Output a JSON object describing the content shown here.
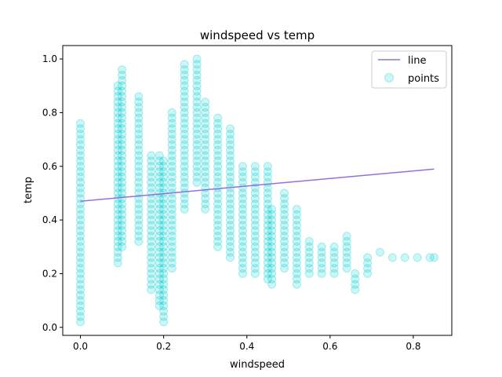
{
  "chart_data": {
    "type": "scatter",
    "title": "windspeed vs temp",
    "xlabel": "windspeed",
    "ylabel": "temp",
    "xlim": [
      -0.0425,
      0.8925
    ],
    "ylim": [
      -0.03,
      1.05
    ],
    "xticks": [
      "0.0",
      "0.2",
      "0.4",
      "0.6",
      "0.8"
    ],
    "xtick_values": [
      0.0,
      0.2,
      0.4,
      0.6,
      0.8
    ],
    "yticks": [
      "0.0",
      "0.2",
      "0.4",
      "0.6",
      "0.8",
      "1.0"
    ],
    "ytick_values": [
      0.0,
      0.2,
      0.4,
      0.6,
      0.8,
      1.0
    ],
    "grid": false,
    "legend_position": "top-right",
    "colors": {
      "points": "#00CED1",
      "line": "#9370DB"
    },
    "series": [
      {
        "name": "line",
        "kind": "line",
        "x": [
          0.0,
          0.85
        ],
        "y": [
          0.47,
          0.59
        ]
      },
      {
        "name": "points",
        "kind": "scatter",
        "columns": [
          {
            "x": 0.0,
            "ymin": 0.02,
            "ymax": 0.76
          },
          {
            "x": 0.09,
            "ymin": 0.24,
            "ymax": 0.9
          },
          {
            "x": 0.1,
            "ymin": 0.3,
            "ymax": 0.96
          },
          {
            "x": 0.14,
            "ymin": 0.32,
            "ymax": 0.86
          },
          {
            "x": 0.17,
            "ymin": 0.14,
            "ymax": 0.64
          },
          {
            "x": 0.19,
            "ymin": 0.08,
            "ymax": 0.64
          },
          {
            "x": 0.2,
            "ymin": 0.02,
            "ymax": 0.62
          },
          {
            "x": 0.22,
            "ymin": 0.22,
            "ymax": 0.8
          },
          {
            "x": 0.25,
            "ymin": 0.44,
            "ymax": 0.98
          },
          {
            "x": 0.28,
            "ymin": 0.54,
            "ymax": 1.0
          },
          {
            "x": 0.3,
            "ymin": 0.44,
            "ymax": 0.84
          },
          {
            "x": 0.33,
            "ymin": 0.3,
            "ymax": 0.78
          },
          {
            "x": 0.36,
            "ymin": 0.26,
            "ymax": 0.74
          },
          {
            "x": 0.39,
            "ymin": 0.2,
            "ymax": 0.6
          },
          {
            "x": 0.42,
            "ymin": 0.2,
            "ymax": 0.6
          },
          {
            "x": 0.45,
            "ymin": 0.18,
            "ymax": 0.6
          },
          {
            "x": 0.46,
            "ymin": 0.16,
            "ymax": 0.44
          },
          {
            "x": 0.49,
            "ymin": 0.22,
            "ymax": 0.5
          },
          {
            "x": 0.52,
            "ymin": 0.16,
            "ymax": 0.44
          },
          {
            "x": 0.55,
            "ymin": 0.2,
            "ymax": 0.32
          },
          {
            "x": 0.58,
            "ymin": 0.2,
            "ymax": 0.3
          },
          {
            "x": 0.61,
            "ymin": 0.2,
            "ymax": 0.3
          },
          {
            "x": 0.64,
            "ymin": 0.22,
            "ymax": 0.34
          },
          {
            "x": 0.66,
            "ymin": 0.14,
            "ymax": 0.2
          },
          {
            "x": 0.69,
            "ymin": 0.2,
            "ymax": 0.26
          }
        ],
        "points": [
          {
            "x": 0.72,
            "y": 0.28
          },
          {
            "x": 0.75,
            "y": 0.26
          },
          {
            "x": 0.78,
            "y": 0.26
          },
          {
            "x": 0.81,
            "y": 0.26
          },
          {
            "x": 0.84,
            "y": 0.26
          },
          {
            "x": 0.85,
            "y": 0.26
          }
        ]
      }
    ]
  }
}
